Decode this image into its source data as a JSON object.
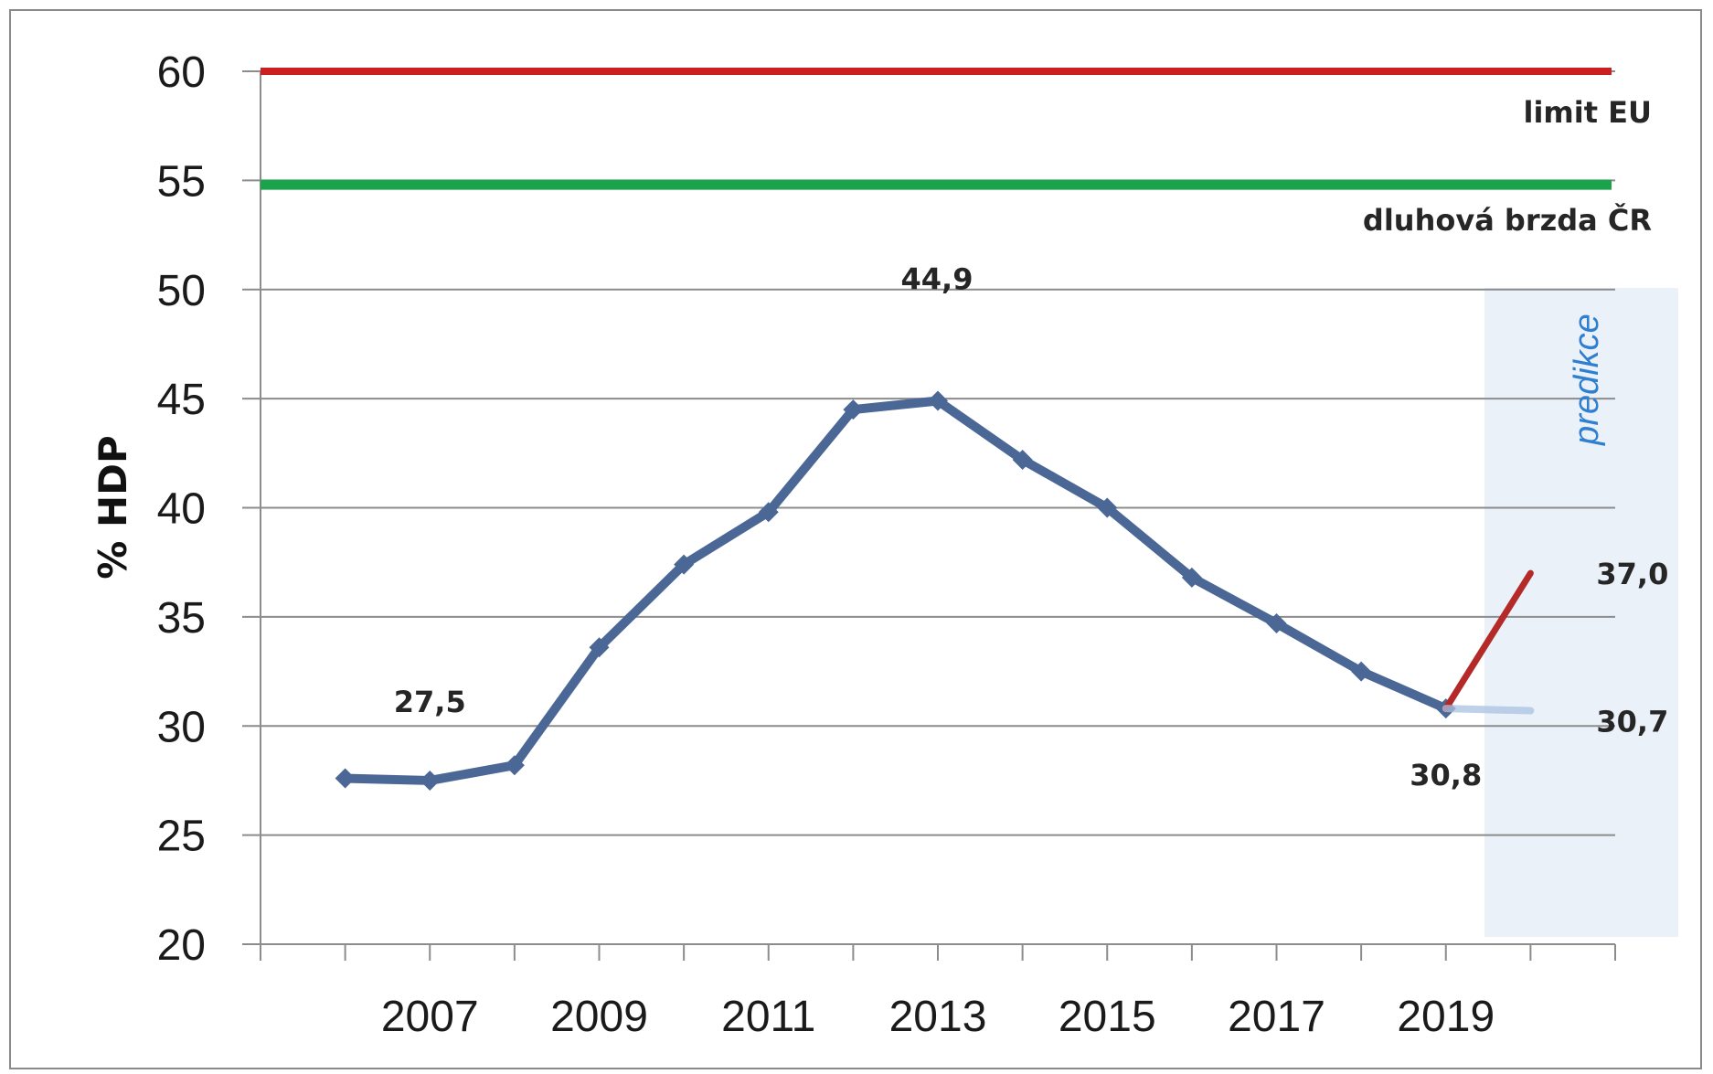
{
  "chart_data": {
    "type": "line",
    "ylabel": "% HDP",
    "ylim": [
      20,
      60
    ],
    "yticks": [
      "20",
      "25",
      "30",
      "35",
      "40",
      "45",
      "50",
      "55",
      "60"
    ],
    "xtick_labels": [
      "2007",
      "2009",
      "2011",
      "2013",
      "2015",
      "2017",
      "2019"
    ],
    "grid": true,
    "series": [
      {
        "x": [
          2006,
          2007,
          2008,
          2009,
          2010,
          2011,
          2012,
          2013,
          2014,
          2015,
          2016,
          2017,
          2018,
          2019
        ],
        "values": [
          27.6,
          27.5,
          28.2,
          33.6,
          37.4,
          39.8,
          44.5,
          44.9,
          42.2,
          40.0,
          36.8,
          34.7,
          32.5,
          30.8
        ],
        "color": "#4a6795"
      },
      {
        "x": [
          2019,
          2020
        ],
        "values": [
          30.8,
          37.0
        ],
        "color": "#b42a28"
      },
      {
        "x": [
          2019,
          2020
        ],
        "values": [
          30.8,
          30.7
        ],
        "color": "#a9c1e0"
      }
    ],
    "reference_lines": [
      {
        "value": 60,
        "label": "limit EU",
        "color": "#cc1f1f"
      },
      {
        "value": 54.8,
        "label": "dluhová brzda ČR",
        "color": "#1aa34a"
      }
    ],
    "data_labels": [
      {
        "text": "27,5",
        "x": 2007,
        "y": 27.5
      },
      {
        "text": "44,9",
        "x": 2013,
        "y": 44.9
      },
      {
        "text": "30,8",
        "x": 2019,
        "y": 30.8
      },
      {
        "text": "37,0",
        "x": 2020,
        "y": 37.0
      },
      {
        "text": "30,7",
        "x": 2020,
        "y": 30.7
      }
    ],
    "forecast_label": "predikce",
    "forecast_fill": "#eaf1f9"
  }
}
